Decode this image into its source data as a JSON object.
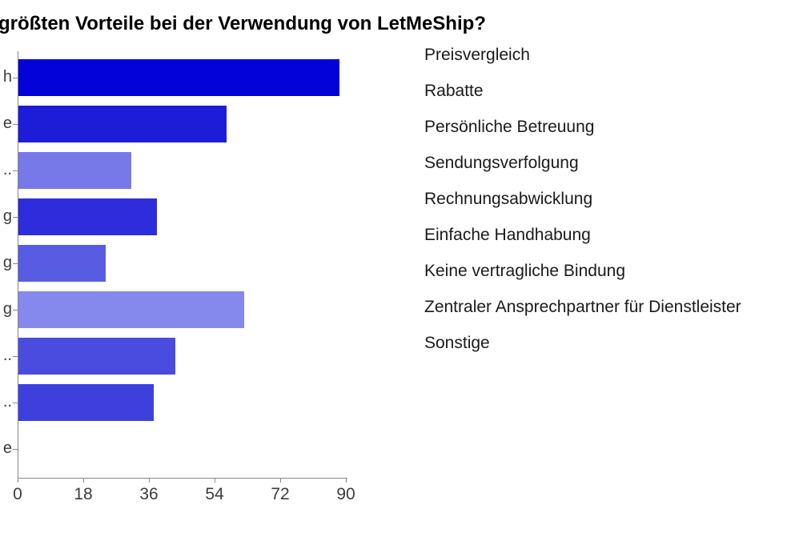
{
  "title": "größten Vorteile bei der Verwendung von LetMeShip?",
  "chart_data": {
    "type": "bar",
    "orientation": "horizontal",
    "title": "größten Vorteile bei der Verwendung von LetMeShip?",
    "categories": [
      "Preisvergleich",
      "Rabatte",
      "Persönliche Betreuung",
      "Sendungsverfolgung",
      "Rechnungsabwicklung",
      "Einfache Handhabung",
      "Keine vertragliche Bindung",
      "Zentraler Ansprechpartner für Dienstleister",
      "Sonstige"
    ],
    "values": [
      88,
      57,
      31,
      38,
      24,
      62,
      43,
      37,
      0
    ],
    "xlabel": "",
    "ylabel": "",
    "xlim": [
      0,
      90
    ],
    "x_ticks": [
      0,
      18,
      36,
      54,
      72,
      90
    ],
    "grid": false,
    "legend_position": "right",
    "bar_colors": [
      "#0202d9",
      "#1c1cd9",
      "#7779e8",
      "#2e2ddb",
      "#585ce2",
      "#8588ec",
      "#494cdf",
      "#3d40dd"
    ],
    "zero_bar_note": "Sonstige has value 0 (no visible bar)",
    "y_axis_label_fragments": [
      "h",
      "e",
      "..",
      "g",
      "g",
      "g",
      "..",
      "..",
      "e"
    ]
  },
  "colors": {
    "axis": "#878787",
    "tick_text": "#3d3d3d",
    "legend_text": "#1a1a1a",
    "title_text": "#000000",
    "background": "#ffffff"
  }
}
